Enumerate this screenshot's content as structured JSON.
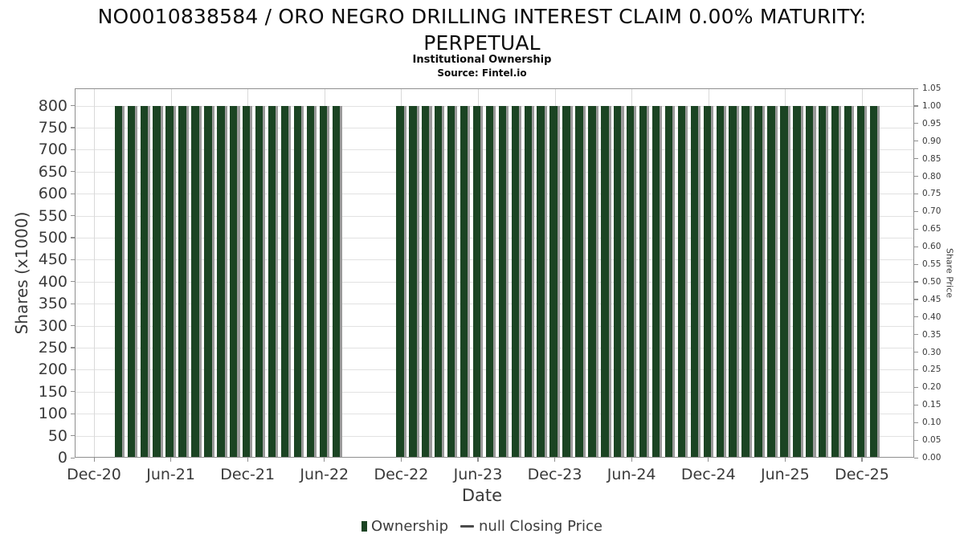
{
  "header": {
    "title_line1": "NO0010838584 / ORO NEGRO DRILLING INTEREST CLAIM 0.00% MATURITY:",
    "title_line2": "PERPETUAL",
    "subtitle": "Institutional Ownership",
    "source": "Source: Fintel.io"
  },
  "legend": {
    "position": "bottom",
    "items": [
      {
        "label": "Ownership",
        "marker": "square",
        "color": "#1b4423"
      },
      {
        "label": "null Closing Price",
        "marker": "dash",
        "color": "#4b4b4b"
      }
    ]
  },
  "chart_data": {
    "type": "bar",
    "title": "NO0010838584 / ORO NEGRO DRILLING INTEREST CLAIM 0.00% MATURITY: PERPETUAL",
    "subtitle": "Institutional Ownership",
    "source": "Source: Fintel.io",
    "xlabel": "Date",
    "ylabel_left": "Shares (x1000)",
    "ylabel_right": "Share Price",
    "grid": true,
    "x_tick_labels": [
      "Dec-20",
      "Jun-21",
      "Dec-21",
      "Jun-22",
      "Dec-22",
      "Jun-23",
      "Dec-23",
      "Jun-24",
      "Dec-24",
      "Jun-25",
      "Dec-25"
    ],
    "y_left": {
      "min": 0,
      "max": 839,
      "tick_step": 50,
      "tick_max_labeled": 800
    },
    "y_right": {
      "min": 0.0,
      "max": 1.05,
      "tick_step": 0.05,
      "tick_decimals": 2
    },
    "bar_color": "#1b4423",
    "bar_shadow_color": "#9a9a9a",
    "series": [
      {
        "name": "Ownership",
        "type": "bar",
        "axis": "left",
        "color": "#1b4423",
        "months": [
          "Feb-21",
          "Mar-21",
          "Apr-21",
          "May-21",
          "Jun-21",
          "Jul-21",
          "Aug-21",
          "Sep-21",
          "Oct-21",
          "Nov-21",
          "Dec-21",
          "Jan-22",
          "Feb-22",
          "Mar-22",
          "Apr-22",
          "May-22",
          "Jun-22",
          "Jul-22",
          "Dec-22",
          "Jan-23",
          "Feb-23",
          "Mar-23",
          "Apr-23",
          "May-23",
          "Jun-23",
          "Jul-23",
          "Aug-23",
          "Sep-23",
          "Oct-23",
          "Nov-23",
          "Dec-23",
          "Jan-24",
          "Feb-24",
          "Mar-24",
          "Apr-24",
          "May-24",
          "Jun-24",
          "Jul-24",
          "Aug-24",
          "Sep-24",
          "Oct-24",
          "Nov-24",
          "Dec-24",
          "Jan-25",
          "Feb-25",
          "Mar-25",
          "Apr-25",
          "May-25",
          "Jun-25",
          "Jul-25",
          "Aug-25",
          "Sep-25",
          "Oct-25",
          "Nov-25",
          "Dec-25",
          "Jan-26"
        ],
        "values": [
          800,
          800,
          800,
          800,
          800,
          800,
          800,
          800,
          800,
          800,
          800,
          800,
          800,
          800,
          800,
          800,
          800,
          800,
          800,
          800,
          800,
          800,
          800,
          800,
          800,
          800,
          800,
          800,
          800,
          800,
          800,
          800,
          800,
          800,
          800,
          800,
          800,
          800,
          800,
          800,
          800,
          800,
          800,
          800,
          800,
          800,
          800,
          800,
          800,
          800,
          800,
          800,
          800,
          800,
          800,
          800
        ]
      },
      {
        "name": "null Closing Price",
        "type": "line",
        "axis": "right",
        "color": "#4b4b4b",
        "values": []
      }
    ]
  }
}
